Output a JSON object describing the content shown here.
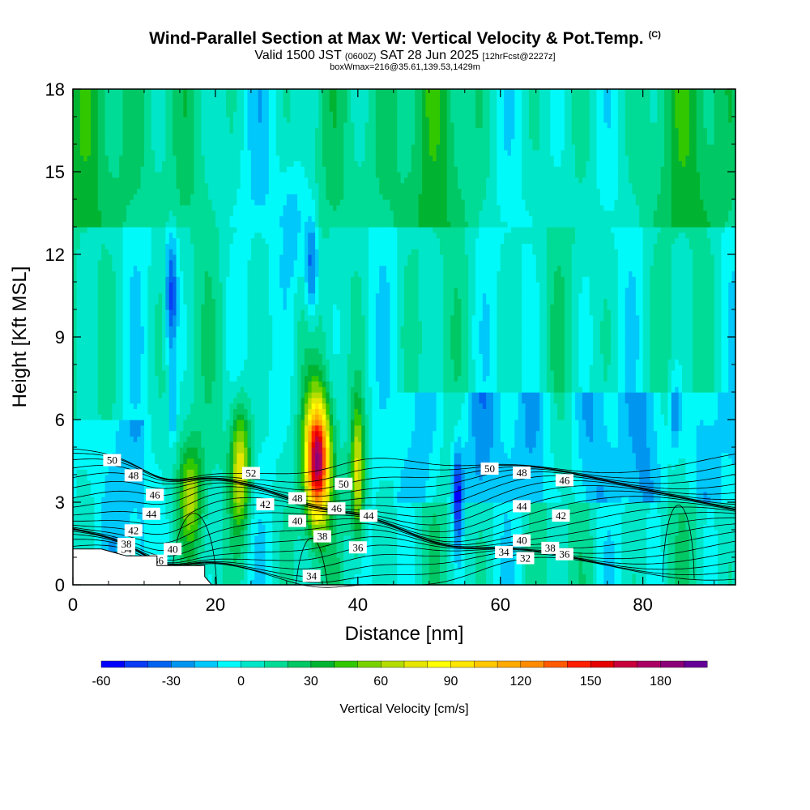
{
  "header": {
    "title": "Wind-Parallel Section at Max W: Vertical Velocity & Pot.Temp.",
    "copyright": "(C)",
    "valid_prefix": "Valid 1500 JST",
    "utc": "(0600Z)",
    "valid_date": "SAT 28 Jun 2025",
    "forecast": "[12hrFcst@2227z]",
    "box_info": "boxWmax=216@35.61,139.53,1429m"
  },
  "chart_data": {
    "type": "heatmap",
    "xlabel": "Distance [nm]",
    "ylabel": "Height [Kft MSL]",
    "xlim": [
      0,
      93
    ],
    "ylim": [
      0,
      18
    ],
    "x_ticks": [
      0,
      20,
      40,
      60,
      80
    ],
    "y_ticks": [
      0,
      3,
      6,
      9,
      12,
      15,
      18
    ],
    "colorbar": {
      "label": "Vertical Velocity [cm/s]",
      "ticks": [
        -60,
        -30,
        0,
        30,
        60,
        90,
        120,
        150,
        180
      ],
      "bounds": [
        -60,
        200
      ],
      "step": 10,
      "colors": [
        "#0000ff",
        "#0a3cf5",
        "#0064f0",
        "#0096f0",
        "#00c8fa",
        "#00fafa",
        "#00e6c8",
        "#00dc96",
        "#00c864",
        "#00b432",
        "#32c800",
        "#78d200",
        "#b4dc00",
        "#e6e600",
        "#ffff00",
        "#ffe600",
        "#ffc800",
        "#ffaa00",
        "#ff8c00",
        "#ff5a00",
        "#ff1e00",
        "#e60000",
        "#c8003c",
        "#aa0064",
        "#8c0078",
        "#640096"
      ]
    },
    "w_features": [
      {
        "x": 23.5,
        "z": 4.3,
        "w": 80
      },
      {
        "x": 34.3,
        "z": 4.5,
        "w": 185
      },
      {
        "x": 40.0,
        "z": 4.0,
        "w": 75
      },
      {
        "x": 16.5,
        "z": 3.3,
        "w": 55
      },
      {
        "x": 54.0,
        "z": 3.1,
        "w": -45
      },
      {
        "x": 13.8,
        "z": 10.5,
        "w": -40
      },
      {
        "x": 33.5,
        "z": 11.5,
        "w": -35
      },
      {
        "x": 84.5,
        "z": 6.2,
        "w": -25
      }
    ],
    "theta_contours": [
      {
        "label": "32",
        "labels_x": [
          63.5
        ]
      },
      {
        "label": "34",
        "labels_x": [
          7.5,
          33.5,
          60.5
        ]
      },
      {
        "label": "36",
        "labels_x": [
          12.0,
          40.0,
          69.0
        ]
      },
      {
        "label": "38",
        "labels_x": [
          7.5,
          35.0,
          67.0
        ]
      },
      {
        "label": "40",
        "labels_x": [
          14.0,
          31.5,
          63.0
        ]
      },
      {
        "label": "42",
        "labels_x": [
          8.5,
          27.0,
          68.5
        ]
      },
      {
        "label": "44",
        "labels_x": [
          11.0,
          41.5,
          63.0
        ]
      },
      {
        "label": "46",
        "labels_x": [
          11.5,
          37.0,
          69.0
        ]
      },
      {
        "label": "48",
        "labels_x": [
          8.5,
          31.5,
          63.0
        ]
      },
      {
        "label": "50",
        "labels_x": [
          5.5,
          38.0,
          58.5
        ]
      },
      {
        "label": "52",
        "labels_x": [
          25.0
        ]
      }
    ],
    "terrain_steps": [
      {
        "x": 0,
        "z": 1.3
      },
      {
        "x": 4,
        "z": 1.3
      },
      {
        "x": 7.5,
        "z": 1.05
      },
      {
        "x": 11.8,
        "z": 1.05
      },
      {
        "x": 11.8,
        "z": 0.7
      },
      {
        "x": 18.5,
        "z": 0.7
      },
      {
        "x": 18.5,
        "z": 0.3
      },
      {
        "x": 19.5,
        "z": 0
      }
    ]
  }
}
